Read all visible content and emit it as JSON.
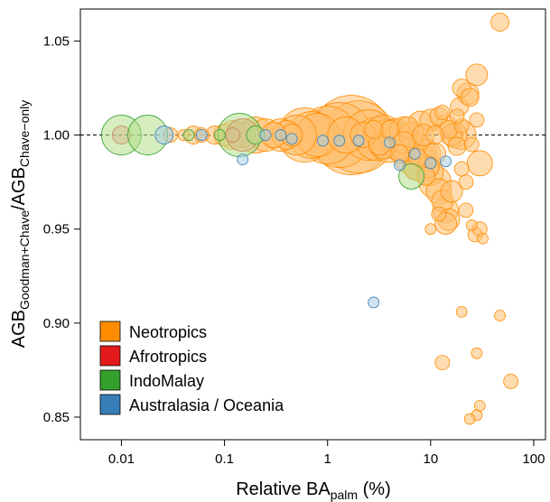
{
  "chart_data": {
    "type": "scatter",
    "title": "",
    "xlabel": {
      "main": "Relative BA",
      "sub": "palm",
      "suffix": " (%)"
    },
    "ylabel": {
      "main1": "AGB",
      "sub1": "Goodman+Chave",
      "sep": "/AGB",
      "sub2": "Chave−only"
    },
    "x_scale": "log",
    "xlim": [
      0.004,
      130
    ],
    "ylim": [
      0.838,
      1.067
    ],
    "x_ticks": [
      {
        "value": 0.01,
        "label": "0.01"
      },
      {
        "value": 0.1,
        "label": "0.1"
      },
      {
        "value": 1,
        "label": "1"
      },
      {
        "value": 10,
        "label": "10"
      },
      {
        "value": 100,
        "label": "100"
      }
    ],
    "y_ticks": [
      {
        "value": 0.85,
        "label": "0.85"
      },
      {
        "value": 0.9,
        "label": "0.90"
      },
      {
        "value": 0.95,
        "label": "0.95"
      },
      {
        "value": 1.0,
        "label": "1.00"
      },
      {
        "value": 1.05,
        "label": "1.05"
      }
    ],
    "reference_line": {
      "y": 1.0,
      "style": "dashed"
    },
    "legend": {
      "position": "bottom-left",
      "entries": [
        {
          "name": "Neotropics",
          "color": "#ff8c00"
        },
        {
          "name": "Afrotropics",
          "color": "#e31a1c"
        },
        {
          "name": "IndoMalay",
          "color": "#33a02c"
        },
        {
          "name": "Australasia / Oceania",
          "color": "#377eb8"
        }
      ]
    },
    "series": [
      {
        "name": "Neotropics",
        "fill": "#fdbf6f",
        "stroke": "#ff8c00",
        "points": [
          [
            0.04,
            1.0,
            3
          ],
          [
            0.06,
            1.0,
            4
          ],
          [
            0.08,
            1.0,
            5
          ],
          [
            0.1,
            1.0,
            6
          ],
          [
            0.12,
            1.0,
            8
          ],
          [
            0.2,
            1.0,
            10
          ],
          [
            0.25,
            1.0,
            9
          ],
          [
            0.3,
            1.0,
            7
          ],
          [
            0.4,
            1.0,
            8
          ],
          [
            0.5,
            1.0,
            11
          ],
          [
            0.6,
            1.0,
            15
          ],
          [
            0.7,
            1.0,
            13
          ],
          [
            0.8,
            1.0,
            12
          ],
          [
            1.0,
            1.0,
            16
          ],
          [
            1.3,
            1.0,
            18
          ],
          [
            1.7,
            1.0,
            22
          ],
          [
            2.0,
            0.999,
            20
          ],
          [
            2.5,
            1.0,
            14
          ],
          [
            3.0,
            0.998,
            12
          ],
          [
            3.5,
            1.001,
            10
          ],
          [
            4.0,
            0.997,
            12
          ],
          [
            4.5,
            1.0,
            9
          ],
          [
            5.0,
            0.996,
            10
          ],
          [
            5.5,
            1.002,
            8
          ],
          [
            6.0,
            0.994,
            9
          ],
          [
            7.0,
            0.99,
            12
          ],
          [
            8.0,
            0.985,
            10
          ],
          [
            9.0,
            0.99,
            8
          ],
          [
            10.0,
            0.98,
            7
          ],
          [
            11.0,
            0.975,
            9
          ],
          [
            12.0,
            0.97,
            7
          ],
          [
            13.0,
            0.965,
            6
          ],
          [
            14.0,
            0.96,
            7
          ],
          [
            15.0,
            0.955,
            6
          ],
          [
            4.0,
            1.003,
            5
          ],
          [
            6.0,
            1.004,
            6
          ],
          [
            8.0,
            1.006,
            7
          ],
          [
            10.0,
            1.008,
            6
          ],
          [
            12.0,
            1.01,
            5
          ],
          [
            14.0,
            1.005,
            6
          ],
          [
            17.0,
            1.0,
            7
          ],
          [
            20.0,
            1.0,
            8
          ],
          [
            3.5,
            0.993,
            6
          ],
          [
            5.0,
            0.99,
            5
          ],
          [
            7.0,
            0.982,
            6
          ],
          [
            9.0,
            0.978,
            5
          ],
          [
            11.0,
            0.99,
            6
          ],
          [
            2.8,
            1.003,
            5
          ],
          [
            3.2,
            0.995,
            6
          ],
          [
            16.0,
            0.97,
            6
          ],
          [
            18.0,
            0.994,
            5
          ],
          [
            20.0,
            0.982,
            4
          ],
          [
            14.0,
            0.953,
            6
          ],
          [
            15.0,
            1.003,
            5
          ],
          [
            19.0,
            1.015,
            5
          ],
          [
            20.0,
            1.025,
            5
          ],
          [
            23.0,
            1.022,
            6
          ],
          [
            28.0,
            1.032,
            6
          ],
          [
            30.0,
            0.985,
            7
          ],
          [
            28.0,
            1.008,
            4
          ],
          [
            25.0,
            0.995,
            4
          ],
          [
            22.0,
            0.96,
            4
          ],
          [
            25.0,
            0.952,
            3
          ],
          [
            27.0,
            0.947,
            4
          ],
          [
            30.0,
            0.95,
            4
          ],
          [
            32.0,
            0.945,
            3
          ],
          [
            20.0,
            1.005,
            4
          ],
          [
            22.0,
            0.975,
            4
          ],
          [
            13.0,
            1.012,
            4
          ],
          [
            18.0,
            1.01,
            4
          ],
          [
            12.0,
            0.958,
            4
          ],
          [
            10.0,
            0.95,
            3
          ],
          [
            24.0,
            1.02,
            5
          ],
          [
            16.0,
            1.0,
            6
          ],
          [
            47.0,
            1.06,
            5
          ],
          [
            13.0,
            0.879,
            4
          ],
          [
            20.0,
            0.906,
            3
          ],
          [
            28.0,
            0.884,
            3
          ],
          [
            30.0,
            0.856,
            3
          ],
          [
            28.0,
            0.851,
            3
          ],
          [
            24.0,
            0.849,
            3
          ],
          [
            47.0,
            0.904,
            3
          ],
          [
            60.0,
            0.869,
            4
          ],
          [
            0.03,
            1.0,
            4
          ],
          [
            0.05,
            1.0,
            5
          ],
          [
            0.15,
            1.0,
            7
          ],
          [
            0.35,
            1.0,
            9
          ],
          [
            0.45,
            1.0,
            6
          ],
          [
            1.5,
            1.0,
            10
          ],
          [
            2.2,
            1.0,
            7
          ],
          [
            5.5,
            0.996,
            6
          ],
          [
            7.5,
            0.988,
            5
          ],
          [
            9.5,
            0.983,
            6
          ],
          [
            6.5,
            1.0,
            7
          ],
          [
            8.5,
            1.0,
            6
          ],
          [
            11.0,
            1.0,
            5
          ]
        ]
      },
      {
        "name": "Afrotropics",
        "fill": "#fb9a99",
        "stroke": "#e31a1c",
        "points": [
          [
            0.01,
            1.0,
            5
          ],
          [
            0.15,
            1.0,
            9
          ],
          [
            0.12,
            1.0,
            4
          ]
        ]
      },
      {
        "name": "IndoMalay",
        "fill": "#b2df8a",
        "stroke": "#33a02c",
        "points": [
          [
            0.01,
            1.0,
            11
          ],
          [
            0.018,
            1.0,
            11
          ],
          [
            0.045,
            1.0,
            3
          ],
          [
            0.09,
            1.0,
            3
          ],
          [
            0.14,
            1.0,
            12
          ],
          [
            0.2,
            1.0,
            5
          ],
          [
            6.5,
            0.978,
            7
          ]
        ]
      },
      {
        "name": "Australasia / Oceania",
        "fill": "#a6cee3",
        "stroke": "#377eb8",
        "points": [
          [
            0.026,
            1.0,
            5
          ],
          [
            0.06,
            1.0,
            3
          ],
          [
            0.15,
            0.987,
            3
          ],
          [
            0.25,
            1.0,
            3
          ],
          [
            0.35,
            1.0,
            3
          ],
          [
            0.45,
            0.998,
            3
          ],
          [
            0.9,
            0.997,
            3
          ],
          [
            1.3,
            0.997,
            3
          ],
          [
            2.8,
            0.911,
            3
          ],
          [
            5.0,
            0.984,
            3
          ],
          [
            7.0,
            0.99,
            3
          ],
          [
            10.0,
            0.985,
            3
          ],
          [
            14.0,
            0.986,
            3
          ],
          [
            2.0,
            0.997,
            3
          ],
          [
            4.0,
            0.996,
            3
          ]
        ]
      }
    ]
  }
}
